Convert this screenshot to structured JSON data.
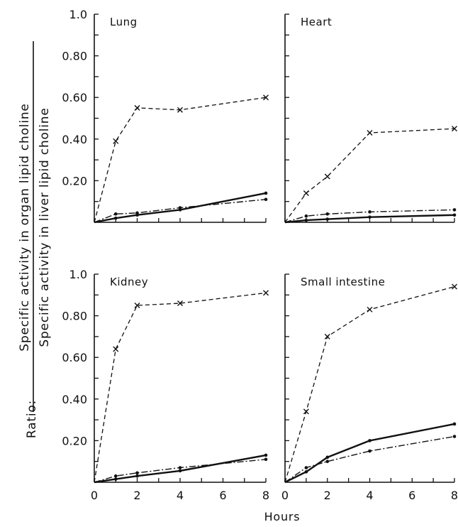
{
  "figure": {
    "xlabel": "Hours",
    "ylabel_prefix": "Ratio:",
    "ylabel_numerator": "Specific activity in organ lipid choline",
    "ylabel_denominator": "Specific activity in liver lipid choline"
  },
  "chart_data": [
    {
      "type": "line",
      "title": "Lung",
      "x_ticks": [],
      "y_ticks": [
        "1.0",
        "0.80",
        "0.60",
        "0.40",
        "0.20"
      ],
      "xlim": [
        0,
        8
      ],
      "ylim": [
        0,
        1.0
      ],
      "series": [
        {
          "style": "dashed-x",
          "x": [
            0,
            1,
            2,
            4,
            8
          ],
          "y": [
            0,
            0.39,
            0.55,
            0.54,
            0.6
          ]
        },
        {
          "style": "dash-dot",
          "x": [
            0,
            1,
            2,
            4,
            8
          ],
          "y": [
            0,
            0.04,
            0.045,
            0.07,
            0.11
          ]
        },
        {
          "style": "solid",
          "x": [
            0,
            1,
            2,
            4,
            8
          ],
          "y": [
            0,
            0.02,
            0.035,
            0.06,
            0.14
          ]
        }
      ]
    },
    {
      "type": "line",
      "title": "Heart",
      "x_ticks": [],
      "y_ticks": [],
      "xlim": [
        0,
        8
      ],
      "ylim": [
        0,
        1.0
      ],
      "series": [
        {
          "style": "dashed-x",
          "x": [
            0,
            1,
            2,
            4,
            8
          ],
          "y": [
            0,
            0.14,
            0.22,
            0.43,
            0.45
          ]
        },
        {
          "style": "dash-dot",
          "x": [
            0,
            1,
            2,
            4,
            8
          ],
          "y": [
            0,
            0.03,
            0.04,
            0.05,
            0.06
          ]
        },
        {
          "style": "solid",
          "x": [
            0,
            1,
            2,
            4,
            8
          ],
          "y": [
            0,
            0.01,
            0.015,
            0.025,
            0.035
          ]
        }
      ]
    },
    {
      "type": "line",
      "title": "Kidney",
      "x_ticks": [
        "0",
        "2",
        "4",
        "6",
        "8"
      ],
      "y_ticks": [
        "1.0",
        "0.80",
        "0.60",
        "0.40",
        "0.20"
      ],
      "xlim": [
        0,
        8
      ],
      "ylim": [
        0,
        1.0
      ],
      "series": [
        {
          "style": "dashed-x",
          "x": [
            0,
            1,
            2,
            4,
            8
          ],
          "y": [
            0,
            0.64,
            0.85,
            0.86,
            0.91
          ]
        },
        {
          "style": "dash-dot",
          "x": [
            0,
            1,
            2,
            4,
            8
          ],
          "y": [
            0,
            0.03,
            0.045,
            0.07,
            0.11
          ]
        },
        {
          "style": "solid",
          "x": [
            0,
            1,
            2,
            4,
            8
          ],
          "y": [
            0,
            0.015,
            0.03,
            0.055,
            0.13
          ]
        }
      ]
    },
    {
      "type": "line",
      "title": "Small intestine",
      "x_ticks": [
        "0",
        "2",
        "4",
        "6",
        "8"
      ],
      "y_ticks": [],
      "xlim": [
        0,
        8
      ],
      "ylim": [
        0,
        1.0
      ],
      "series": [
        {
          "style": "dashed-x",
          "x": [
            0,
            1,
            2,
            4,
            8
          ],
          "y": [
            0,
            0.34,
            0.7,
            0.83,
            0.94
          ]
        },
        {
          "style": "dash-dot",
          "x": [
            0,
            1,
            2,
            4,
            8
          ],
          "y": [
            0,
            0.07,
            0.1,
            0.15,
            0.22
          ]
        },
        {
          "style": "solid",
          "x": [
            0,
            1,
            2,
            4,
            8
          ],
          "y": [
            0,
            0.05,
            0.12,
            0.2,
            0.28
          ]
        }
      ]
    }
  ]
}
